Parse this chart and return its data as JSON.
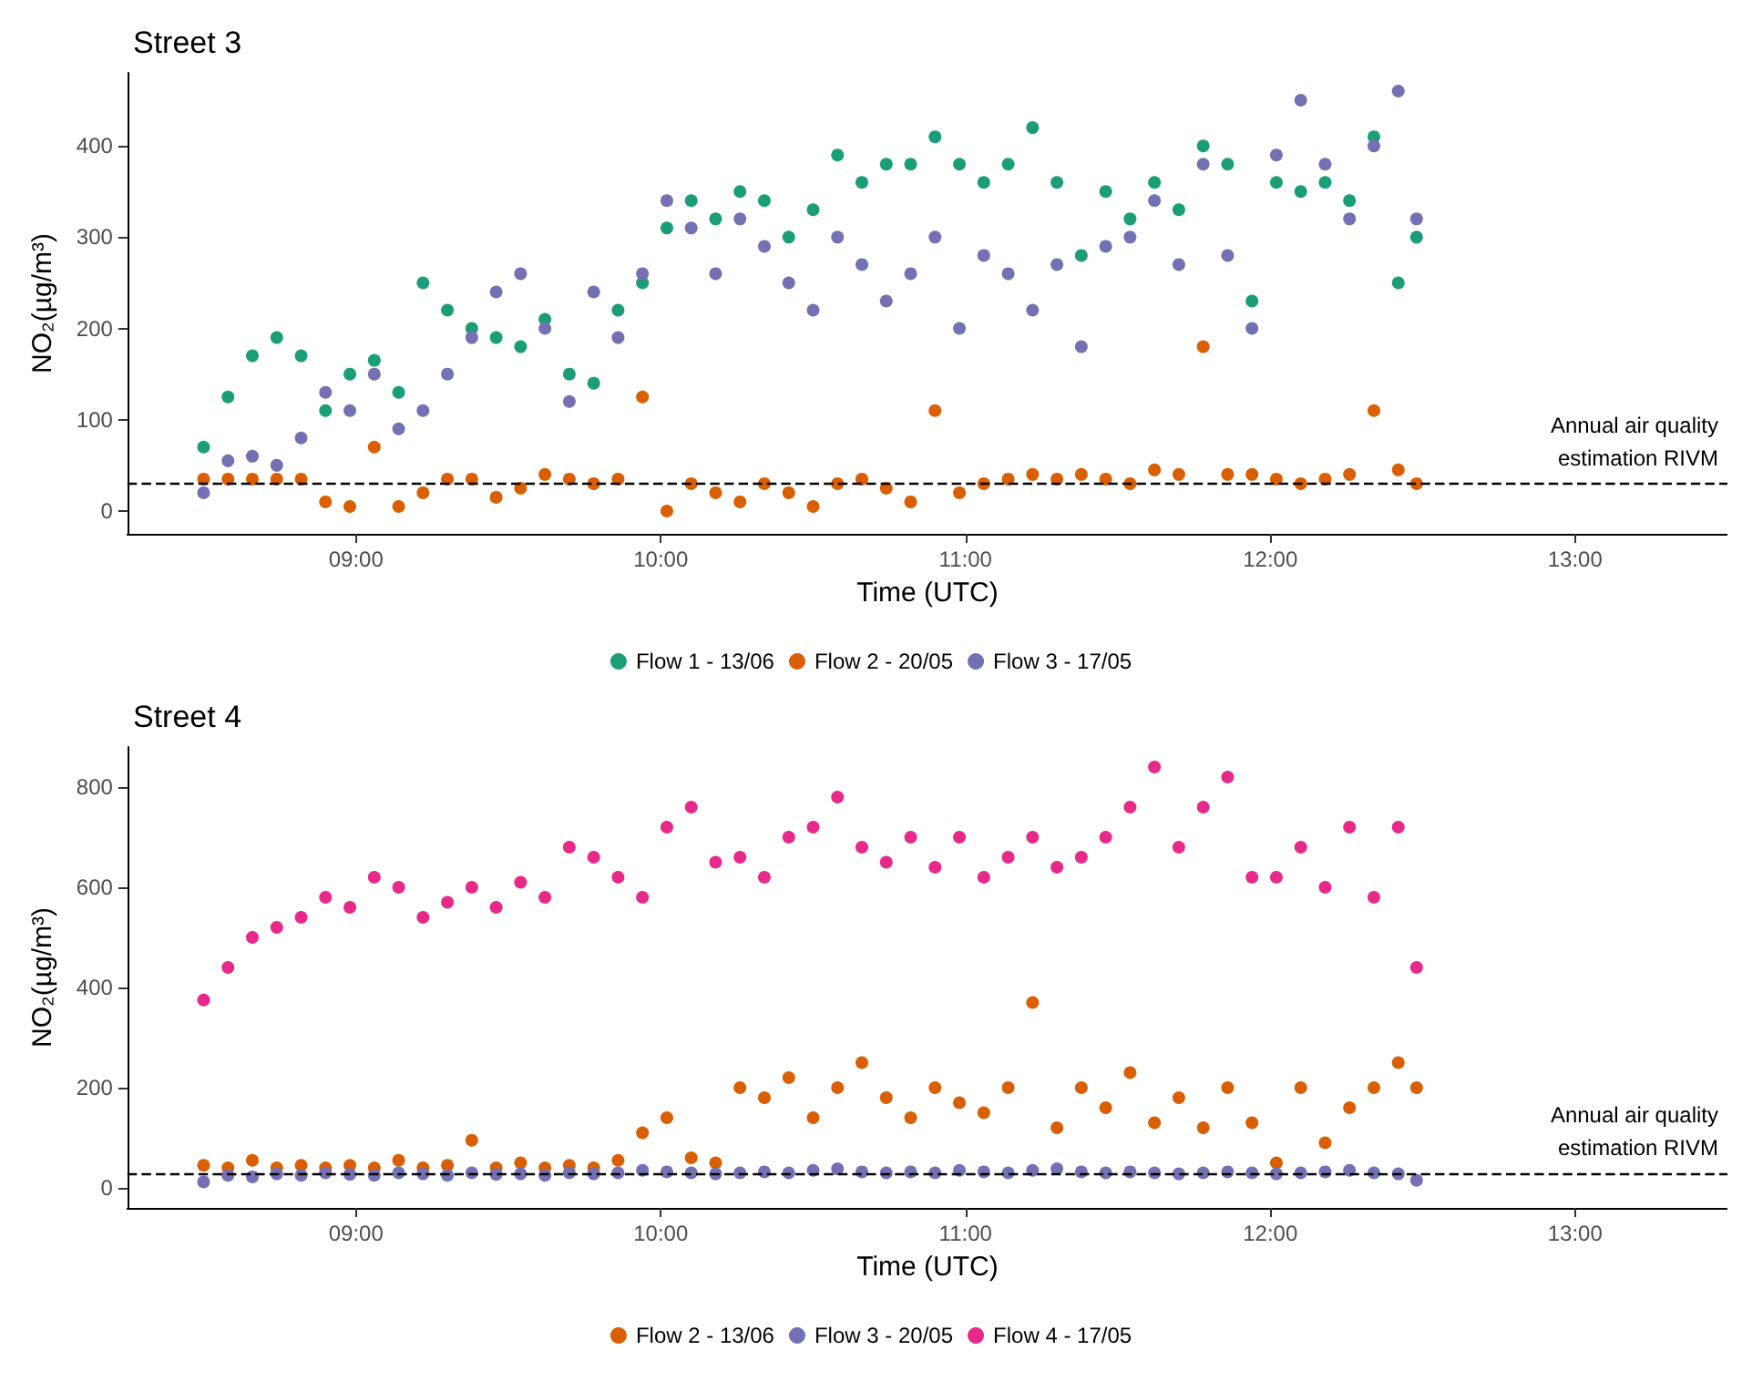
{
  "chart_data": [
    {
      "type": "scatter",
      "title": "Street 3",
      "xlabel": "Time (UTC)",
      "ylabel": "NO₂(µg/m³)",
      "x": [
        8.5,
        8.58,
        8.66,
        8.74,
        8.82,
        8.9,
        8.98,
        9.06,
        9.14,
        9.22,
        9.3,
        9.38,
        9.46,
        9.54,
        9.62,
        9.7,
        9.78,
        9.86,
        9.94,
        10.02,
        10.1,
        10.18,
        10.26,
        10.34,
        10.42,
        10.5,
        10.58,
        10.66,
        10.74,
        10.82,
        10.9,
        10.98,
        11.06,
        11.14,
        11.22,
        11.3,
        11.38,
        11.46,
        11.54,
        11.62,
        11.7,
        11.78,
        11.86,
        11.94,
        12.02,
        12.1,
        12.18,
        12.26,
        12.34,
        12.42,
        12.48
      ],
      "series": [
        {
          "name": "Flow 1 - 13/06",
          "color": "#1b9e77",
          "values": [
            70,
            125,
            170,
            190,
            170,
            110,
            150,
            165,
            130,
            250,
            220,
            200,
            190,
            180,
            210,
            150,
            140,
            220,
            250,
            310,
            340,
            320,
            350,
            340,
            300,
            330,
            390,
            360,
            380,
            380,
            410,
            380,
            360,
            380,
            420,
            360,
            280,
            350,
            320,
            360,
            330,
            400,
            380,
            230,
            360,
            350,
            360,
            340,
            410,
            250,
            300
          ]
        },
        {
          "name": "Flow 2 - 20/05",
          "color": "#d95f02",
          "values": [
            35,
            35,
            35,
            35,
            35,
            10,
            5,
            70,
            5,
            20,
            35,
            35,
            15,
            25,
            40,
            35,
            30,
            35,
            125,
            0,
            30,
            20,
            10,
            30,
            20,
            5,
            30,
            35,
            25,
            10,
            110,
            20,
            30,
            35,
            40,
            35,
            40,
            35,
            30,
            45,
            40,
            180,
            40,
            40,
            35,
            30,
            35,
            40,
            110,
            45,
            30
          ]
        },
        {
          "name": "Flow 3 - 17/05",
          "color": "#7570b3",
          "values": [
            20,
            55,
            60,
            50,
            80,
            130,
            110,
            150,
            90,
            110,
            150,
            190,
            240,
            260,
            200,
            120,
            240,
            190,
            260,
            340,
            310,
            260,
            320,
            290,
            250,
            220,
            300,
            270,
            230,
            260,
            300,
            200,
            280,
            260,
            220,
            270,
            180,
            290,
            300,
            340,
            270,
            380,
            280,
            200,
            390,
            450,
            380,
            320,
            400,
            460,
            320
          ]
        }
      ],
      "xlim": [
        8.25,
        13.5
      ],
      "ylim": [
        -25,
        480
      ],
      "xticks": [
        {
          "value": 9,
          "label": "09:00"
        },
        {
          "value": 10,
          "label": "10:00"
        },
        {
          "value": 11,
          "label": "11:00"
        },
        {
          "value": 12,
          "label": "12:00"
        },
        {
          "value": 13,
          "label": "13:00"
        }
      ],
      "yticks": [
        0,
        100,
        200,
        300,
        400
      ],
      "ref_lines": [
        {
          "axis": "y",
          "value": 30,
          "label": "Annual air quality\nestimation RIVM",
          "color": "#000000",
          "line_style": "dashed"
        }
      ],
      "grid": false,
      "legend": "bottom",
      "marker": "circle"
    },
    {
      "type": "scatter",
      "title": "Street 4",
      "xlabel": "Time (UTC)",
      "ylabel": "NO₂(µg/m³)",
      "x": [
        8.5,
        8.58,
        8.66,
        8.74,
        8.82,
        8.9,
        8.98,
        9.06,
        9.14,
        9.22,
        9.3,
        9.38,
        9.46,
        9.54,
        9.62,
        9.7,
        9.78,
        9.86,
        9.94,
        10.02,
        10.1,
        10.18,
        10.26,
        10.34,
        10.42,
        10.5,
        10.58,
        10.66,
        10.74,
        10.82,
        10.9,
        10.98,
        11.06,
        11.14,
        11.22,
        11.3,
        11.38,
        11.46,
        11.54,
        11.62,
        11.7,
        11.78,
        11.86,
        11.94,
        12.02,
        12.1,
        12.18,
        12.26,
        12.34,
        12.42,
        12.48
      ],
      "series": [
        {
          "name": "Flow 2 - 13/06",
          "color": "#d95f02",
          "values": [
            45,
            40,
            55,
            40,
            45,
            40,
            45,
            40,
            55,
            40,
            45,
            95,
            40,
            50,
            40,
            45,
            40,
            55,
            110,
            140,
            60,
            50,
            200,
            180,
            220,
            140,
            200,
            250,
            180,
            140,
            200,
            170,
            150,
            200,
            370,
            120,
            200,
            160,
            230,
            130,
            180,
            120,
            200,
            130,
            50,
            200,
            90,
            160,
            200,
            250,
            200
          ]
        },
        {
          "name": "Flow 3 - 20/05",
          "color": "#7570b3",
          "values": [
            12,
            25,
            22,
            28,
            25,
            30,
            27,
            25,
            30,
            28,
            25,
            30,
            27,
            28,
            25,
            30,
            28,
            30,
            35,
            32,
            30,
            28,
            30,
            32,
            30,
            35,
            38,
            32,
            30,
            32,
            30,
            35,
            32,
            30,
            35,
            38,
            32,
            30,
            32,
            30,
            28,
            30,
            32,
            30,
            28,
            30,
            32,
            35,
            30,
            28,
            15
          ]
        },
        {
          "name": "Flow 4 - 17/05",
          "color": "#e7298a",
          "values": [
            375,
            440,
            500,
            520,
            540,
            580,
            560,
            620,
            600,
            540,
            570,
            600,
            560,
            610,
            580,
            680,
            660,
            620,
            580,
            720,
            760,
            650,
            660,
            620,
            700,
            720,
            780,
            680,
            650,
            700,
            640,
            700,
            620,
            660,
            700,
            640,
            660,
            700,
            760,
            840,
            680,
            760,
            820,
            620,
            620,
            680,
            600,
            720,
            580,
            720,
            440
          ]
        }
      ],
      "xlim": [
        8.25,
        13.5
      ],
      "ylim": [
        -40,
        880
      ],
      "xticks": [
        {
          "value": 9,
          "label": "09:00"
        },
        {
          "value": 10,
          "label": "10:00"
        },
        {
          "value": 11,
          "label": "11:00"
        },
        {
          "value": 12,
          "label": "12:00"
        },
        {
          "value": 13,
          "label": "13:00"
        }
      ],
      "yticks": [
        0,
        200,
        400,
        600,
        800
      ],
      "ref_lines": [
        {
          "axis": "y",
          "value": 30,
          "label": "Annual air quality\nestimation RIVM",
          "color": "#000000",
          "line_style": "dashed"
        }
      ],
      "grid": false,
      "legend": "bottom",
      "marker": "circle"
    }
  ]
}
